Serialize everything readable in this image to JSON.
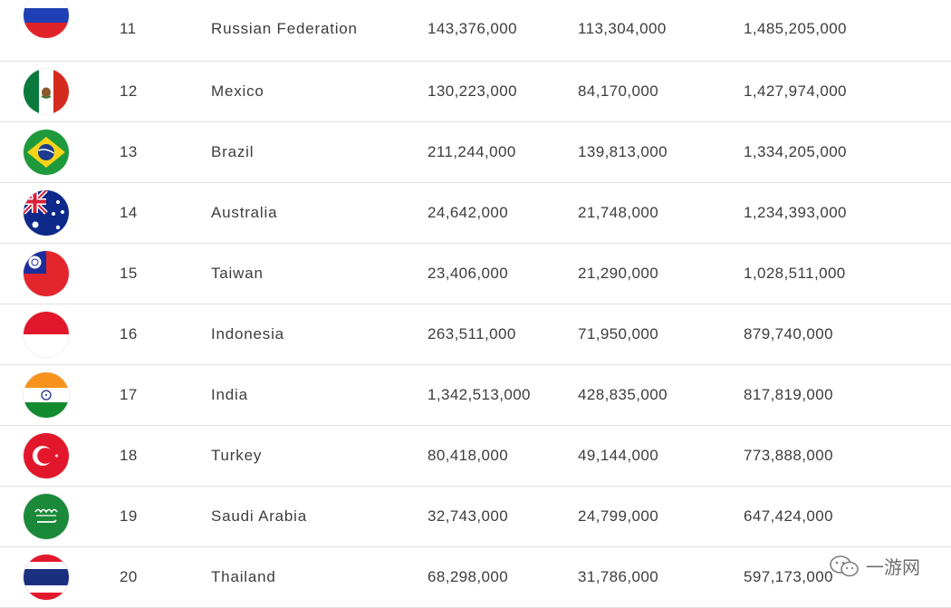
{
  "rows": [
    {
      "flag_icon": "russia-flag-icon",
      "rank": "11",
      "country": "Russian Federation",
      "population": "143,376,000",
      "online_population": "113,304,000",
      "revenues": "1,485,205,000"
    },
    {
      "flag_icon": "mexico-flag-icon",
      "rank": "12",
      "country": "Mexico",
      "population": "130,223,000",
      "online_population": "84,170,000",
      "revenues": "1,427,974,000"
    },
    {
      "flag_icon": "brazil-flag-icon",
      "rank": "13",
      "country": "Brazil",
      "population": "211,244,000",
      "online_population": "139,813,000",
      "revenues": "1,334,205,000"
    },
    {
      "flag_icon": "australia-flag-icon",
      "rank": "14",
      "country": "Australia",
      "population": "24,642,000",
      "online_population": "21,748,000",
      "revenues": "1,234,393,000"
    },
    {
      "flag_icon": "taiwan-flag-icon",
      "rank": "15",
      "country": "Taiwan",
      "population": "23,406,000",
      "online_population": "21,290,000",
      "revenues": "1,028,511,000"
    },
    {
      "flag_icon": "indonesia-flag-icon",
      "rank": "16",
      "country": "Indonesia",
      "population": "263,511,000",
      "online_population": "71,950,000",
      "revenues": "879,740,000"
    },
    {
      "flag_icon": "india-flag-icon",
      "rank": "17",
      "country": "India",
      "population": "1,342,513,000",
      "online_population": "428,835,000",
      "revenues": "817,819,000"
    },
    {
      "flag_icon": "turkey-flag-icon",
      "rank": "18",
      "country": "Turkey",
      "population": "80,418,000",
      "online_population": "49,144,000",
      "revenues": "773,888,000"
    },
    {
      "flag_icon": "saudi-arabia-flag-icon",
      "rank": "19",
      "country": "Saudi Arabia",
      "population": "32,743,000",
      "online_population": "24,799,000",
      "revenues": "647,424,000"
    },
    {
      "flag_icon": "thailand-flag-icon",
      "rank": "20",
      "country": "Thailand",
      "population": "68,298,000",
      "online_population": "31,786,000",
      "revenues": "597,173,000"
    }
  ],
  "watermark": {
    "text": "一游网",
    "icon": "wechat-icon"
  },
  "colors": {
    "divider": "#e3e3e3",
    "text": "#3d3d3d"
  }
}
